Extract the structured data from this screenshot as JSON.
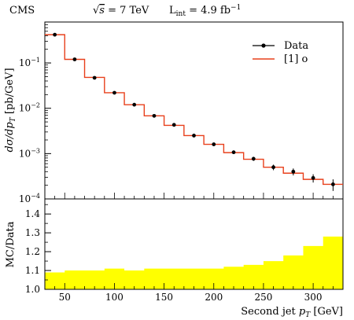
{
  "header": {
    "experiment": "CMS",
    "energy_prefix": "√",
    "energy_s": "s",
    "energy_value": " = 7 TeV",
    "lumi_base": "L",
    "lumi_sub": "int",
    "lumi_value": " = 4.9 fb",
    "lumi_exp": "−1"
  },
  "chart_data": [
    {
      "panel": "main",
      "type": "line",
      "ylabel": "dσ/dp_T [pb/GeV]",
      "yscale": "log",
      "ylim": [
        0.0001,
        0.8
      ],
      "xlim": [
        30,
        330
      ],
      "ytick_mantissa": "10",
      "yticks": [
        {
          "value": 0.1,
          "exp": "−1"
        },
        {
          "value": 0.01,
          "exp": "−2"
        },
        {
          "value": 0.001,
          "exp": "−3"
        },
        {
          "value": 0.0001,
          "exp": "−4"
        }
      ],
      "legend": {
        "placement": "top-right",
        "data_label": "Data",
        "mc_label": "[1] o"
      },
      "series": [
        {
          "name": "Data",
          "style": "points-with-errors",
          "color": "#000000",
          "x": [
            40,
            60,
            80,
            100,
            120,
            140,
            160,
            180,
            200,
            220,
            240,
            260,
            280,
            300,
            320
          ],
          "y": [
            0.42,
            0.12,
            0.047,
            0.022,
            0.012,
            0.0068,
            0.0043,
            0.0025,
            0.0016,
            0.00107,
            0.00077,
            0.0005,
            0.0004,
            0.00029,
            0.00021
          ],
          "y_err": [
            0.025,
            0.008,
            0.003,
            0.0015,
            0.0008,
            0.0005,
            0.0003,
            0.0002,
            0.00012,
            9e-05,
            8e-05,
            7e-05,
            7e-05,
            6e-05,
            6e-05
          ]
        },
        {
          "name": "[1] o",
          "style": "step",
          "color": "#e8401c",
          "bin_edges": [
            30,
            50,
            70,
            90,
            110,
            130,
            150,
            170,
            190,
            210,
            230,
            250,
            270,
            290,
            310,
            330
          ],
          "y": [
            0.42,
            0.12,
            0.048,
            0.022,
            0.012,
            0.0068,
            0.0042,
            0.0025,
            0.0016,
            0.00105,
            0.00075,
            0.0005,
            0.00037,
            0.00027,
            0.00021
          ]
        }
      ]
    },
    {
      "panel": "ratio",
      "type": "area",
      "ylabel": "MC/Data",
      "xlabel": "Second jet p_T [GeV]",
      "ylim": [
        1.0,
        1.48
      ],
      "xlim": [
        30,
        330
      ],
      "yticks": [
        1.0,
        1.1,
        1.2,
        1.3,
        1.4
      ],
      "xticks": [
        50,
        100,
        150,
        200,
        250,
        300
      ],
      "series": [
        {
          "name": "",
          "style": "filled-step",
          "color": "#ffff00",
          "bin_edges": [
            30,
            50,
            70,
            90,
            110,
            130,
            150,
            170,
            190,
            210,
            230,
            250,
            270,
            290,
            310,
            330
          ],
          "y": [
            1.09,
            1.1,
            1.1,
            1.11,
            1.1,
            1.11,
            1.11,
            1.11,
            1.11,
            1.12,
            1.13,
            1.15,
            1.18,
            1.23,
            1.28
          ]
        }
      ]
    }
  ]
}
